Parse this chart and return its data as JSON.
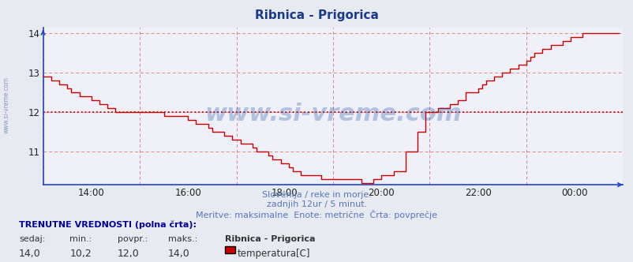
{
  "title": "Ribnica - Prigorica",
  "title_color": "#1a3a8a",
  "bg_color": "#e8eaf2",
  "plot_bg_color": "#f0f0f8",
  "grid_color_h": "#dd8888",
  "grid_color_v": "#cc8888",
  "grid_linestyle": "--",
  "axis_color": "#2244cc",
  "line_color": "#cc0000",
  "avg_line_color": "#cc0000",
  "avg_value": 12.0,
  "ylim_bottom": 10.15,
  "ylim_top": 14.15,
  "yticks": [
    11,
    12,
    13,
    14
  ],
  "xlabel_texts": [
    "14:00",
    "16:00",
    "18:00",
    "20:00",
    "22:00",
    "00:00"
  ],
  "xtick_positions": [
    12,
    36,
    60,
    84,
    108,
    132
  ],
  "footer_line1": "Slovenija / reke in morje.",
  "footer_line2": "zadnjih 12ur / 5 minut.",
  "footer_line3": "Meritve: maksimalne  Enote: metrične  Črta: povprečje",
  "footer_color": "#5577bb",
  "watermark": "www.si-vreme.com",
  "watermark_color": "#2255aa",
  "sidebar_text": "www.si-vreme.com",
  "sidebar_color": "#8899bb",
  "legend_title": "TRENUTNE VREDNOSTI (polna črta):",
  "legend_headers": [
    "sedaj:",
    "min.:",
    "povpr.:",
    "maks.:"
  ],
  "legend_values": [
    "14,0",
    "10,2",
    "12,0",
    "14,0"
  ],
  "legend_series_name": "Ribnica - Prigorica",
  "legend_series_label": "temperatura[C]",
  "legend_series_color": "#cc0000",
  "temp_values": [
    12.9,
    12.9,
    12.8,
    12.8,
    12.7,
    12.7,
    12.6,
    12.5,
    12.5,
    12.4,
    12.4,
    12.4,
    12.3,
    12.3,
    12.2,
    12.2,
    12.1,
    12.1,
    12.0,
    12.0,
    12.0,
    12.0,
    12.0,
    12.0,
    12.0,
    12.0,
    12.0,
    12.0,
    12.0,
    12.0,
    11.9,
    11.9,
    11.9,
    11.9,
    11.9,
    11.9,
    11.8,
    11.8,
    11.7,
    11.7,
    11.7,
    11.6,
    11.5,
    11.5,
    11.5,
    11.4,
    11.4,
    11.3,
    11.3,
    11.2,
    11.2,
    11.2,
    11.1,
    11.0,
    11.0,
    11.0,
    10.9,
    10.8,
    10.8,
    10.7,
    10.7,
    10.6,
    10.5,
    10.5,
    10.4,
    10.4,
    10.4,
    10.4,
    10.4,
    10.3,
    10.3,
    10.3,
    10.3,
    10.3,
    10.3,
    10.3,
    10.3,
    10.3,
    10.3,
    10.2,
    10.2,
    10.2,
    10.3,
    10.3,
    10.4,
    10.4,
    10.4,
    10.5,
    10.5,
    10.5,
    11.0,
    11.0,
    11.0,
    11.5,
    11.5,
    12.0,
    12.0,
    12.0,
    12.1,
    12.1,
    12.1,
    12.2,
    12.2,
    12.3,
    12.3,
    12.5,
    12.5,
    12.5,
    12.6,
    12.7,
    12.8,
    12.8,
    12.9,
    12.9,
    13.0,
    13.0,
    13.1,
    13.1,
    13.2,
    13.2,
    13.3,
    13.4,
    13.5,
    13.5,
    13.6,
    13.6,
    13.7,
    13.7,
    13.7,
    13.8,
    13.8,
    13.9,
    13.9,
    13.9,
    14.0,
    14.0,
    14.0,
    14.0,
    14.0,
    14.0,
    14.0,
    14.0,
    14.0,
    14.0
  ]
}
